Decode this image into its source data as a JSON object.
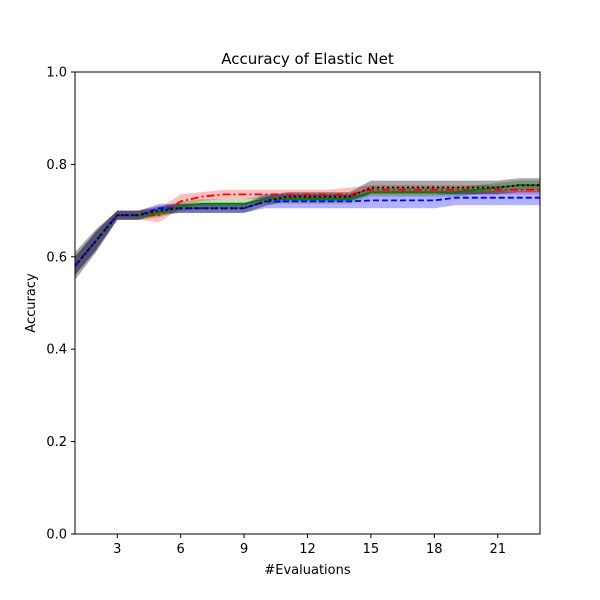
{
  "chart_data": {
    "type": "line",
    "title": "Accuracy of Elastic Net",
    "xlabel": "#Evaluations",
    "ylabel": "Accuracy",
    "xlim": [
      1,
      23
    ],
    "ylim": [
      0,
      1
    ],
    "xticks": [
      3,
      6,
      9,
      12,
      15,
      18,
      21
    ],
    "xtick_labels": [
      "3",
      "6",
      "9",
      "12",
      "15",
      "18",
      "21"
    ],
    "yticks": [
      0,
      0.2,
      0.4,
      0.6,
      0.8,
      1.0
    ],
    "ytick_labels": [
      "0.0",
      "0.2",
      "0.4",
      "0.6",
      "0.8",
      "1.0"
    ],
    "grid": false,
    "x": [
      1,
      2,
      3,
      4,
      5,
      6,
      7,
      8,
      9,
      10,
      11,
      12,
      13,
      14,
      15,
      16,
      17,
      18,
      19,
      20,
      21,
      22,
      23
    ],
    "series": [
      {
        "color": "#ff0000",
        "linestyle": "dashdot",
        "fill_opacity": 0.25,
        "values": [
          0.58,
          0.635,
          0.69,
          0.69,
          0.69,
          0.72,
          0.73,
          0.735,
          0.735,
          0.735,
          0.735,
          0.735,
          0.735,
          0.735,
          0.745,
          0.745,
          0.745,
          0.745,
          0.745,
          0.745,
          0.745,
          0.745,
          0.745
        ],
        "lower": [
          0.56,
          0.615,
          0.68,
          0.68,
          0.675,
          0.705,
          0.72,
          0.725,
          0.725,
          0.725,
          0.725,
          0.725,
          0.725,
          0.725,
          0.735,
          0.735,
          0.735,
          0.735,
          0.735,
          0.735,
          0.735,
          0.735,
          0.735
        ],
        "upper": [
          0.6,
          0.655,
          0.7,
          0.7,
          0.705,
          0.735,
          0.74,
          0.745,
          0.745,
          0.745,
          0.745,
          0.745,
          0.745,
          0.75,
          0.755,
          0.755,
          0.755,
          0.755,
          0.755,
          0.755,
          0.755,
          0.755,
          0.755
        ]
      },
      {
        "color": "#008000",
        "linestyle": "solid",
        "fill_opacity": 0.25,
        "values": [
          0.58,
          0.635,
          0.69,
          0.69,
          0.695,
          0.71,
          0.715,
          0.715,
          0.715,
          0.725,
          0.725,
          0.725,
          0.725,
          0.725,
          0.74,
          0.74,
          0.74,
          0.74,
          0.74,
          0.745,
          0.75,
          0.755,
          0.755
        ],
        "lower": [
          0.56,
          0.615,
          0.68,
          0.68,
          0.685,
          0.7,
          0.705,
          0.705,
          0.705,
          0.715,
          0.715,
          0.715,
          0.715,
          0.715,
          0.73,
          0.73,
          0.73,
          0.73,
          0.73,
          0.735,
          0.74,
          0.745,
          0.745
        ],
        "upper": [
          0.6,
          0.655,
          0.7,
          0.7,
          0.705,
          0.72,
          0.725,
          0.725,
          0.725,
          0.735,
          0.735,
          0.735,
          0.735,
          0.735,
          0.75,
          0.75,
          0.75,
          0.75,
          0.75,
          0.755,
          0.76,
          0.765,
          0.765
        ]
      },
      {
        "color": "#0000ff",
        "linestyle": "dashed",
        "fill_opacity": 0.3,
        "values": [
          0.58,
          0.635,
          0.69,
          0.69,
          0.705,
          0.705,
          0.705,
          0.705,
          0.705,
          0.72,
          0.72,
          0.72,
          0.72,
          0.72,
          0.722,
          0.722,
          0.722,
          0.722,
          0.728,
          0.728,
          0.728,
          0.728,
          0.728
        ],
        "lower": [
          0.56,
          0.615,
          0.68,
          0.68,
          0.695,
          0.695,
          0.695,
          0.695,
          0.695,
          0.705,
          0.705,
          0.705,
          0.705,
          0.705,
          0.705,
          0.705,
          0.705,
          0.705,
          0.712,
          0.712,
          0.712,
          0.712,
          0.712
        ],
        "upper": [
          0.6,
          0.655,
          0.7,
          0.7,
          0.715,
          0.715,
          0.715,
          0.715,
          0.715,
          0.735,
          0.735,
          0.735,
          0.735,
          0.735,
          0.735,
          0.735,
          0.735,
          0.735,
          0.742,
          0.742,
          0.742,
          0.742,
          0.742
        ]
      },
      {
        "color": "#000000",
        "linestyle": "dotted",
        "fill_opacity": 0.35,
        "values": [
          0.58,
          0.635,
          0.69,
          0.69,
          0.7,
          0.705,
          0.705,
          0.705,
          0.705,
          0.72,
          0.73,
          0.73,
          0.73,
          0.73,
          0.75,
          0.75,
          0.75,
          0.75,
          0.75,
          0.75,
          0.75,
          0.755,
          0.755
        ],
        "lower": [
          0.55,
          0.61,
          0.68,
          0.68,
          0.69,
          0.695,
          0.695,
          0.695,
          0.695,
          0.71,
          0.72,
          0.72,
          0.72,
          0.72,
          0.735,
          0.735,
          0.735,
          0.735,
          0.735,
          0.735,
          0.735,
          0.74,
          0.74
        ],
        "upper": [
          0.61,
          0.66,
          0.7,
          0.7,
          0.71,
          0.715,
          0.715,
          0.715,
          0.715,
          0.73,
          0.74,
          0.74,
          0.74,
          0.74,
          0.765,
          0.765,
          0.765,
          0.765,
          0.765,
          0.765,
          0.765,
          0.77,
          0.77
        ]
      }
    ]
  }
}
